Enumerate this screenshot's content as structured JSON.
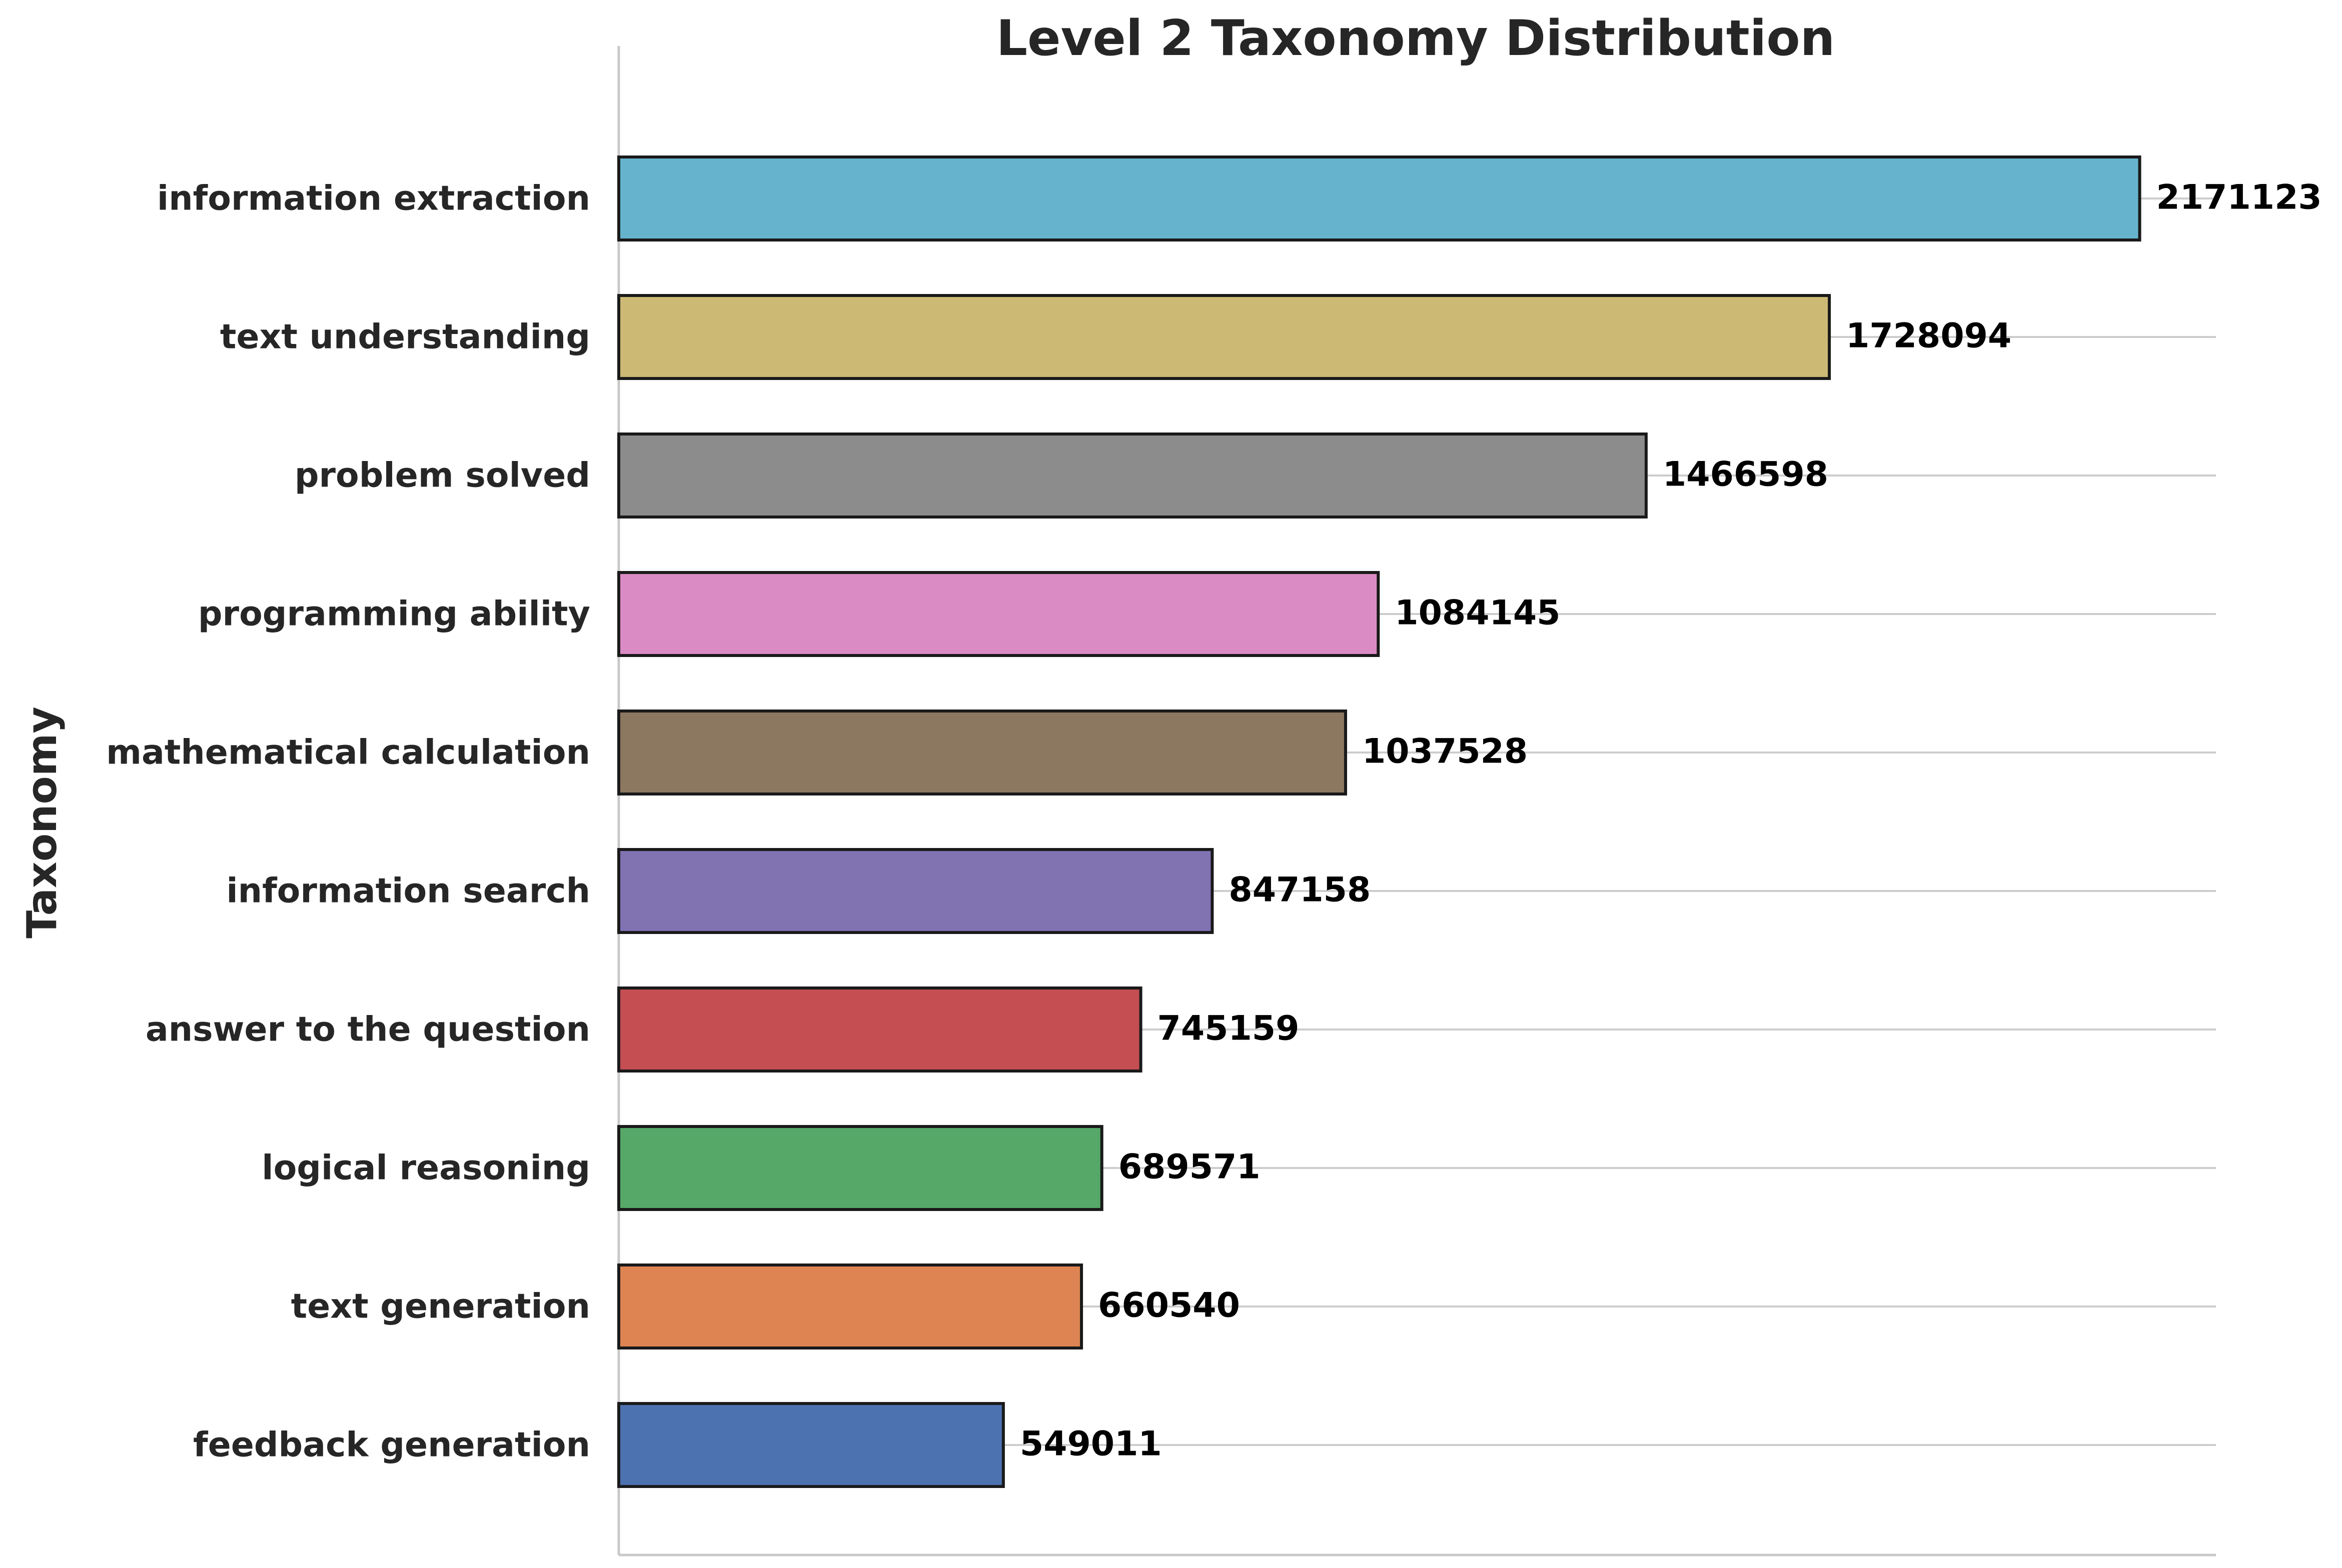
{
  "chart_data": {
    "type": "bar",
    "orientation": "horizontal",
    "title": "Level 2 Taxonomy Distribution",
    "xlabel": "",
    "ylabel": "Taxonomy",
    "categories": [
      "information extraction",
      "text understanding",
      "problem solved",
      "programming ability",
      "mathematical calculation",
      "information search",
      "answer to the question",
      "logical reasoning",
      "text generation",
      "feedback generation"
    ],
    "values": [
      2171123,
      1728094,
      1466598,
      1084145,
      1037528,
      847158,
      745159,
      689571,
      660540,
      549011
    ],
    "value_labels": [
      "2171123",
      "1728094",
      "1466598",
      "1084145",
      "1037528",
      "847158",
      "745159",
      "689571",
      "660540",
      "549011"
    ],
    "colors": [
      "#65b3cd",
      "#ccb974",
      "#8c8c8c",
      "#da8bc3",
      "#8c7760",
      "#8172b2",
      "#c44e52",
      "#55a868",
      "#dd8452",
      "#4c72b0"
    ],
    "edge_color": "#1a1a1a",
    "xlim": [
      0,
      2280000
    ],
    "grid": "vertical-only",
    "legend": "none"
  }
}
